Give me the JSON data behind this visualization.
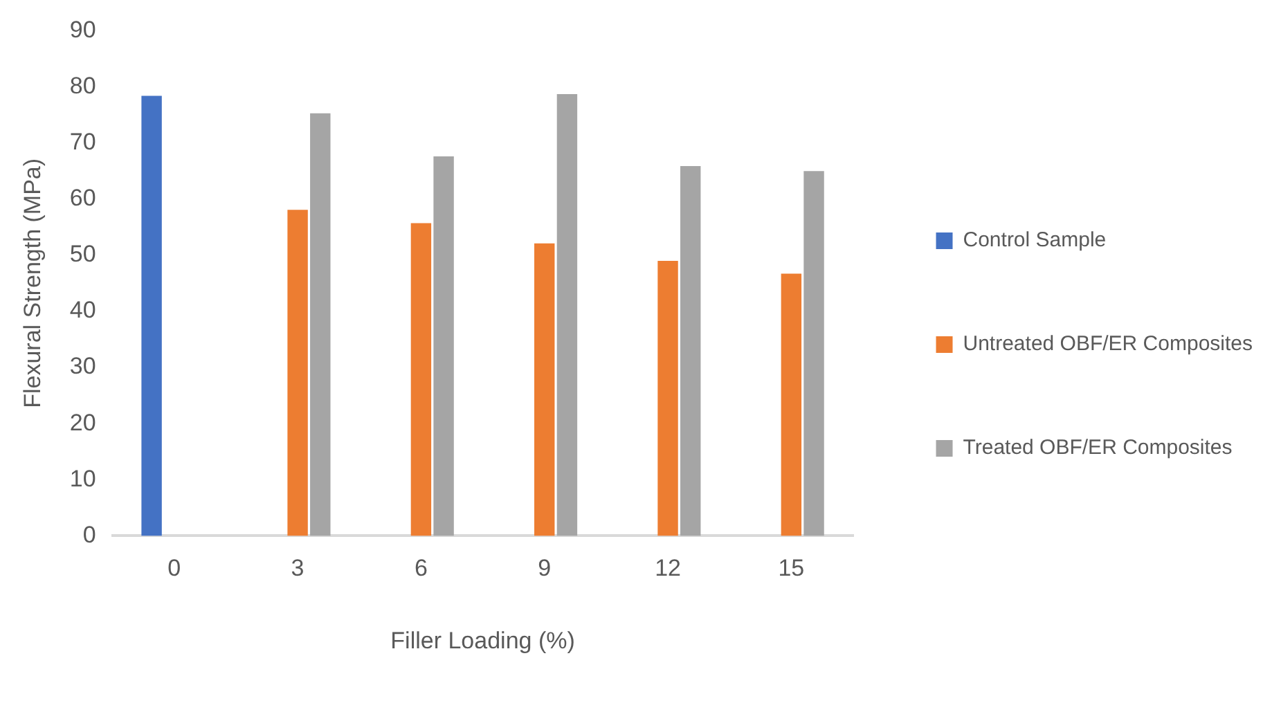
{
  "chart_data": {
    "type": "bar",
    "xlabel": "Filler Loading (%)",
    "ylabel": "Flexural Strength (MPa)",
    "categories": [
      "0",
      "3",
      "6",
      "9",
      "12",
      "15"
    ],
    "series": [
      {
        "name": "Control Sample",
        "color": "#4472c4",
        "values": [
          78.4,
          null,
          null,
          null,
          null,
          null
        ]
      },
      {
        "name": "Untreated OBF/ER Composites",
        "color": "#ed7d31",
        "values": [
          null,
          58.1,
          55.7,
          52.1,
          49.0,
          46.7
        ]
      },
      {
        "name": "Treated OBF/ER Composites",
        "color": "#a5a5a5",
        "values": [
          null,
          75.3,
          67.6,
          78.7,
          65.9,
          65.0
        ]
      }
    ],
    "ylim": [
      0,
      90
    ],
    "yticks": [
      0,
      10,
      20,
      30,
      40,
      50,
      60,
      70,
      80,
      90
    ],
    "grid": false,
    "legend": "right"
  }
}
